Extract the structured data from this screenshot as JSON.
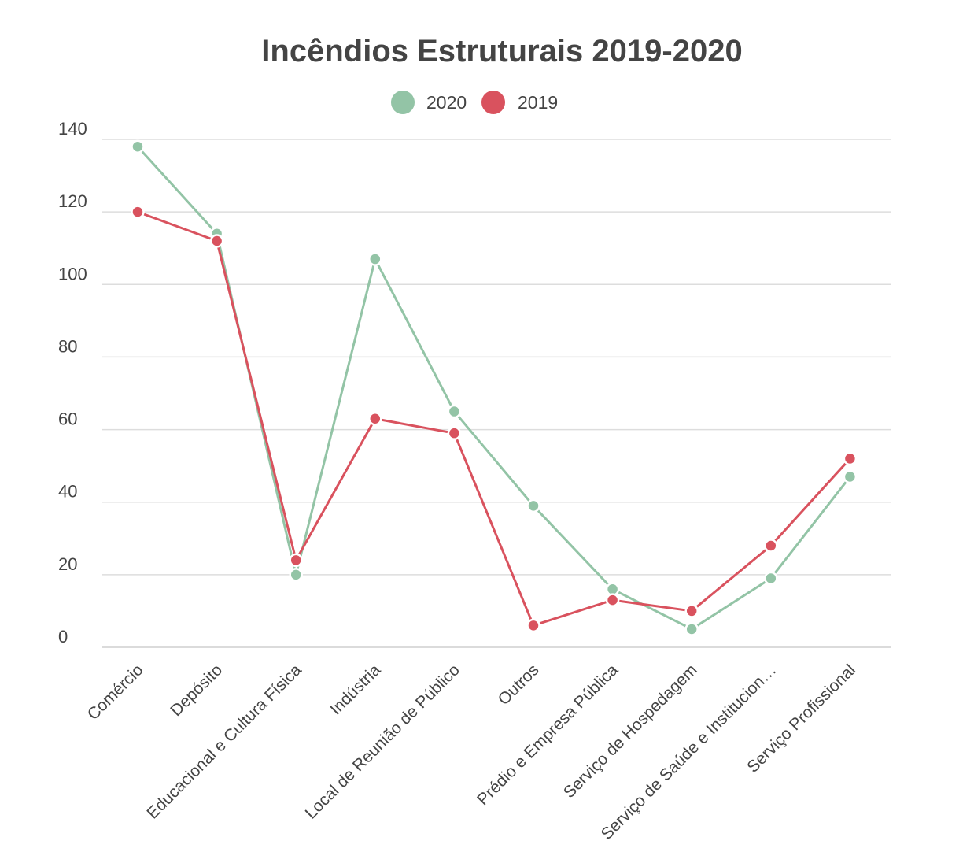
{
  "chart_data": {
    "type": "line",
    "title": "Incêndios Estruturais 2019-2020",
    "xlabel": "",
    "ylabel": "",
    "ylim": [
      0,
      140
    ],
    "yticks": [
      0,
      20,
      40,
      60,
      80,
      100,
      120,
      140
    ],
    "grid": true,
    "legend_position": "top-center",
    "categories": [
      "Comércio",
      "Depósito",
      "Educacional e Cultura Física",
      "Indústria",
      "Local de Reunião de Público",
      "Outros",
      "Prédio e Empresa Pública",
      "Serviço de Hospedagem",
      "Serviço de Saúde e Institucion…",
      "Serviço Profissional"
    ],
    "series": [
      {
        "name": "2020",
        "color": "#93c4a6",
        "values": [
          138,
          114,
          20,
          107,
          65,
          39,
          16,
          5,
          19,
          47
        ]
      },
      {
        "name": "2019",
        "color": "#d9525e",
        "values": [
          120,
          112,
          24,
          63,
          59,
          6,
          13,
          10,
          28,
          52
        ]
      }
    ]
  }
}
